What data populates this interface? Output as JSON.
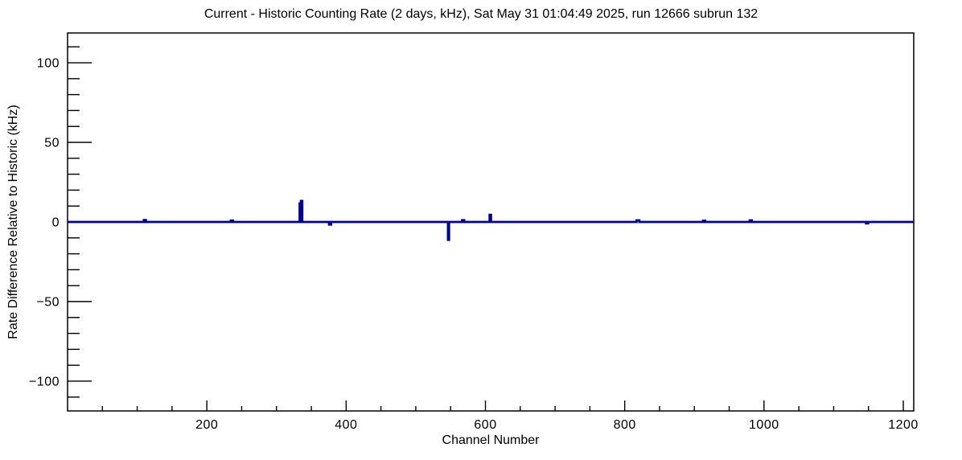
{
  "chart_data": {
    "type": "line",
    "title": "Current - Historic Counting Rate (2 days, kHz), Sat May 31 01:04:49 2025, run 12666 subrun 132",
    "xlabel": "Channel Number",
    "ylabel": "Rate Difference Relative to Historic (kHz)",
    "xlim": [
      0,
      1215
    ],
    "ylim": [
      -118.7,
      118.7
    ],
    "x_major_ticks": [
      200,
      400,
      600,
      800,
      1000,
      1200
    ],
    "x_tick_labels": [
      "200",
      "400",
      "600",
      "800",
      "1000",
      "1200"
    ],
    "x_minor_step": 50,
    "y_major_ticks": [
      -100,
      -50,
      0,
      50,
      100
    ],
    "y_tick_labels": [
      "−100",
      "−50",
      "0",
      "50",
      "100"
    ],
    "y_minor_step": 10,
    "grid": false,
    "legend": false,
    "background_color": "#ffffff",
    "frame_color": "#000000",
    "line_color": "#000099",
    "series": [
      {
        "name": "current-minus-historic-rate",
        "baseline": 0,
        "spikes_format": [
          "channel",
          "value_kHz",
          "width_channels"
        ],
        "spikes": [
          [
            111,
            1.2,
            3
          ],
          [
            236,
            0.9,
            3
          ],
          [
            334,
            11.6,
            1.5
          ],
          [
            336,
            13.2,
            2
          ],
          [
            377,
            -1.6,
            3
          ],
          [
            547,
            -11.2,
            1.5
          ],
          [
            568,
            1.1,
            3
          ],
          [
            607,
            4.5,
            2
          ],
          [
            819,
            1.0,
            4
          ],
          [
            914,
            0.8,
            3
          ],
          [
            981,
            1.0,
            3
          ],
          [
            1148,
            -0.9,
            3
          ]
        ]
      }
    ]
  }
}
